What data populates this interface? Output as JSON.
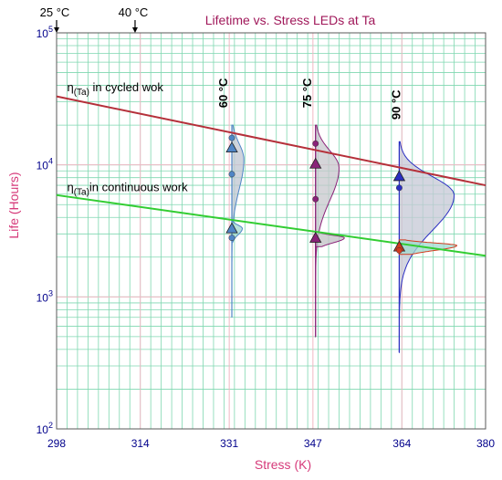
{
  "chart_data": {
    "type": "scatter",
    "title": "Lifetime vs. Stress LEDs at Ta",
    "xlabel": "Stress (K)",
    "ylabel": "Life (Hours)",
    "xlim": [
      298,
      380
    ],
    "ylim": [
      100,
      100000
    ],
    "y_scale": "log",
    "grid": true,
    "x_ticks": [
      {
        "value": 298,
        "label": "298"
      },
      {
        "value": 314,
        "label": "314"
      },
      {
        "value": 331,
        "label": "331"
      },
      {
        "value": 347,
        "label": "347"
      },
      {
        "value": 364,
        "label": "364"
      },
      {
        "value": 380,
        "label": "380"
      }
    ],
    "y_ticks": [
      {
        "value": 100,
        "mant": "10",
        "exp": "2"
      },
      {
        "value": 1000,
        "mant": "10",
        "exp": "3"
      },
      {
        "value": 10000,
        "mant": "10",
        "exp": "4"
      },
      {
        "value": 100000,
        "mant": "10",
        "exp": "5"
      }
    ],
    "top_markers": [
      {
        "x": 298,
        "label": "25 °C"
      },
      {
        "x": 313,
        "label": "40 °C"
      }
    ],
    "temperature_labels": [
      {
        "x": 331,
        "y": 27000,
        "label": "60 °C"
      },
      {
        "x": 347,
        "y": 27000,
        "label": "75 °C"
      },
      {
        "x": 364,
        "y": 22000,
        "label": "90 °C"
      }
    ],
    "series": [
      {
        "name": "η(Ta) in cycled wok",
        "label_main": "η",
        "label_sub": "(Ta)",
        "label_rest": " in cycled wok",
        "color": "#b5303a",
        "line": [
          [
            298,
            33000
          ],
          [
            380,
            7000
          ]
        ],
        "label_at": [
          300,
          36000
        ],
        "points": [
          {
            "x": 331.5,
            "y": 16000,
            "marker": "circle",
            "color": "#4f86c6"
          },
          {
            "x": 331.5,
            "y": 13500,
            "marker": "triangle",
            "color": "#4f86c6"
          },
          {
            "x": 331.5,
            "y": 8500,
            "marker": "circle",
            "color": "#4f86c6"
          },
          {
            "x": 347.5,
            "y": 14500,
            "marker": "circle",
            "color": "#8a2278"
          },
          {
            "x": 347.5,
            "y": 10200,
            "marker": "triangle",
            "color": "#8a2278"
          },
          {
            "x": 347.5,
            "y": 5500,
            "marker": "circle",
            "color": "#8a2278"
          },
          {
            "x": 363.5,
            "y": 8200,
            "marker": "triangle",
            "color": "#2b2fc2"
          },
          {
            "x": 363.5,
            "y": 6700,
            "marker": "circle",
            "color": "#2b2fc2"
          }
        ]
      },
      {
        "name": "η(Ta) in continuous work",
        "label_main": "η",
        "label_sub": "(Ta)",
        "label_rest": "in continuous work",
        "color": "#32cd32",
        "line": [
          [
            298,
            5900
          ],
          [
            380,
            2050
          ]
        ],
        "label_at": [
          300,
          6300
        ],
        "points": [
          {
            "x": 331.5,
            "y": 3300,
            "marker": "triangle",
            "color": "#4f86c6"
          },
          {
            "x": 331.5,
            "y": 2800,
            "marker": "circle",
            "color": "#4f86c6"
          },
          {
            "x": 347.5,
            "y": 2800,
            "marker": "triangle",
            "color": "#8a2278"
          },
          {
            "x": 363.5,
            "y": 2400,
            "marker": "triangle",
            "color": "#d23b1e"
          },
          {
            "x": 363.5,
            "y": 2250,
            "marker": "circle",
            "color": "#d23b1e"
          }
        ]
      }
    ],
    "distributions": [
      {
        "x": 331.5,
        "color": "#4f86c6",
        "fill": "#bfc6d2",
        "y_min": 700,
        "y_max": 20000,
        "mode": 11000,
        "width": 2.3,
        "sigma": 0.12
      },
      {
        "x": 331.5,
        "color": "#4f86c6",
        "fill": "#9fd8cf",
        "y_min": 2600,
        "y_max": 3800,
        "mode": 3300,
        "width": 2.0,
        "sigma": 0.025
      },
      {
        "x": 347.5,
        "color": "#8a2278",
        "fill": "#c7c7cc",
        "y_min": 500,
        "y_max": 20000,
        "mode": 9500,
        "width": 4.5,
        "sigma": 0.13
      },
      {
        "x": 347.5,
        "color": "#8a2278",
        "fill": "#c0c0c4",
        "y_min": 2400,
        "y_max": 3100,
        "mode": 2800,
        "width": 5.5,
        "sigma": 0.02
      },
      {
        "x": 363.5,
        "color": "#2b2fc2",
        "fill": "#c5c8d6",
        "y_min": 380,
        "y_max": 15000,
        "mode": 5900,
        "width": 10.5,
        "sigma": 0.14
      },
      {
        "x": 363.5,
        "color": "#d23b1e",
        "fill": "#9fd8cf",
        "y_min": 2100,
        "y_max": 2700,
        "mode": 2450,
        "width": 11,
        "sigma": 0.02
      }
    ]
  }
}
